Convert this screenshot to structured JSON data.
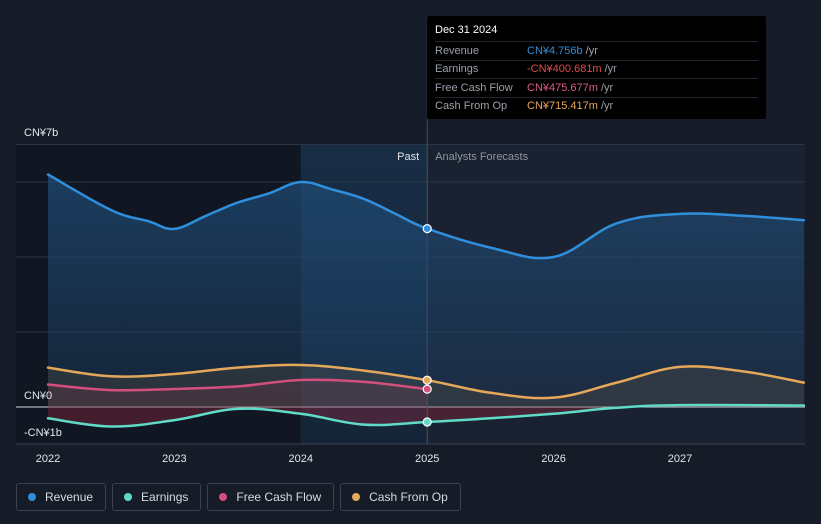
{
  "chart_data": {
    "type": "line",
    "currency_note": "CN¥",
    "y_labels": {
      "top": "CN¥7b",
      "zero": "CN¥0",
      "bottom": "-CN¥1b"
    },
    "ylim": [
      -1.0,
      7.0
    ],
    "x_ticks": [
      {
        "x": 2022,
        "label": "2022"
      },
      {
        "x": 2023,
        "label": "2023"
      },
      {
        "x": 2024,
        "label": "2024"
      },
      {
        "x": 2025,
        "label": "2025"
      },
      {
        "x": 2026,
        "label": "2026"
      },
      {
        "x": 2027,
        "label": "2027"
      }
    ],
    "xlim": [
      2021.77,
      2027.98
    ],
    "divider_x": 2025.0,
    "highlight_start_x": 2024.0,
    "past_label": "Past",
    "forecast_label": "Analysts Forecasts",
    "series": [
      {
        "name": "Revenue",
        "color": "#2f8fdc",
        "points": [
          [
            2022.0,
            6.2
          ],
          [
            2022.5,
            5.25
          ],
          [
            2022.8,
            4.95
          ],
          [
            2023.0,
            4.75
          ],
          [
            2023.25,
            5.1
          ],
          [
            2023.5,
            5.45
          ],
          [
            2023.75,
            5.7
          ],
          [
            2024.0,
            6.0
          ],
          [
            2024.25,
            5.8
          ],
          [
            2024.5,
            5.55
          ],
          [
            2024.75,
            5.15
          ],
          [
            2025.0,
            4.756
          ],
          [
            2025.5,
            4.25
          ],
          [
            2026.0,
            4.0
          ],
          [
            2026.5,
            4.9
          ],
          [
            2027.0,
            5.15
          ],
          [
            2027.5,
            5.1
          ],
          [
            2027.98,
            4.98
          ]
        ],
        "past_end": 2025.0
      },
      {
        "name": "Earnings",
        "color": "#5fdbc8",
        "points": [
          [
            2022.0,
            -0.3
          ],
          [
            2022.5,
            -0.52
          ],
          [
            2023.0,
            -0.35
          ],
          [
            2023.5,
            -0.05
          ],
          [
            2024.0,
            -0.18
          ],
          [
            2024.5,
            -0.47
          ],
          [
            2025.0,
            -0.4007
          ],
          [
            2025.5,
            -0.3
          ],
          [
            2026.0,
            -0.18
          ],
          [
            2026.5,
            -0.02
          ],
          [
            2027.0,
            0.05
          ],
          [
            2027.98,
            0.04
          ]
        ],
        "past_end": 2025.0
      },
      {
        "name": "Free Cash Flow",
        "color": "#d44f7d",
        "points": [
          [
            2022.0,
            0.6
          ],
          [
            2022.5,
            0.45
          ],
          [
            2023.0,
            0.48
          ],
          [
            2023.5,
            0.55
          ],
          [
            2024.0,
            0.72
          ],
          [
            2024.5,
            0.67
          ],
          [
            2025.0,
            0.4757
          ]
        ],
        "past_end": 2025.0
      },
      {
        "name": "Cash From Op",
        "color": "#e5a85a",
        "points": [
          [
            2022.0,
            1.05
          ],
          [
            2022.5,
            0.82
          ],
          [
            2023.0,
            0.88
          ],
          [
            2023.5,
            1.05
          ],
          [
            2024.0,
            1.12
          ],
          [
            2024.5,
            0.97
          ],
          [
            2025.0,
            0.7154
          ],
          [
            2025.5,
            0.38
          ],
          [
            2026.0,
            0.25
          ],
          [
            2026.5,
            0.65
          ],
          [
            2027.0,
            1.07
          ],
          [
            2027.5,
            0.95
          ],
          [
            2027.98,
            0.65
          ]
        ],
        "past_end": 2025.0
      }
    ]
  },
  "tooltip": {
    "date": "Dec 31 2024",
    "rows": [
      {
        "label": "Revenue",
        "value": "CN¥4.756b",
        "unit": "/yr",
        "color": "#2f8fdc"
      },
      {
        "label": "Earnings",
        "value": "-CN¥400.681m",
        "unit": "/yr",
        "color": "#e04b4b"
      },
      {
        "label": "Free Cash Flow",
        "value": "CN¥475.677m",
        "unit": "/yr",
        "color": "#e05a8a"
      },
      {
        "label": "Cash From Op",
        "value": "CN¥715.417m",
        "unit": "/yr",
        "color": "#e5a85a"
      }
    ]
  },
  "legend": [
    {
      "label": "Revenue",
      "color": "#2f8fdc"
    },
    {
      "label": "Earnings",
      "color": "#5fdbc8"
    },
    {
      "label": "Free Cash Flow",
      "color": "#d44f7d"
    },
    {
      "label": "Cash From Op",
      "color": "#e5a85a"
    }
  ]
}
